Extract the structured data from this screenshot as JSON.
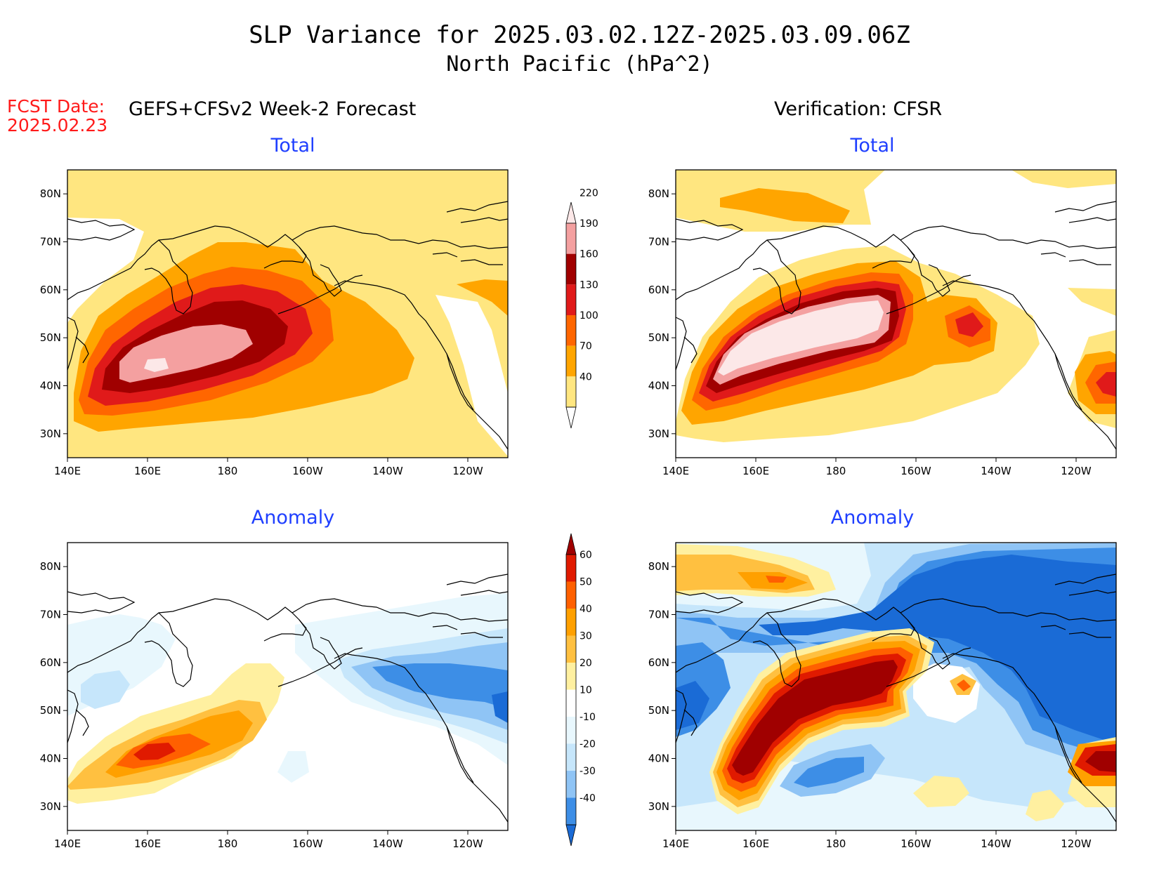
{
  "header": {
    "title_line1": "SLP Variance for 2025.03.02.12Z-2025.03.09.06Z",
    "title_line2": "North Pacific (hPa^2)",
    "fcst_line1": "FCST Date:",
    "fcst_line2": "2025.02.23",
    "forecast_heading": "GEFS+CFSv2 Week-2 Forecast",
    "verification_heading": "Verification: CFSR"
  },
  "panels": {
    "fc_total": {
      "title": "Total"
    },
    "ver_total": {
      "title": "Total"
    },
    "fc_anom": {
      "title": "Anomaly"
    },
    "ver_anom": {
      "title": "Anomaly"
    }
  },
  "axes": {
    "lon_labels": [
      "140E",
      "160E",
      "180",
      "160W",
      "140W",
      "120W"
    ],
    "lat_labels": [
      "80N",
      "70N",
      "60N",
      "50N",
      "40N",
      "30N"
    ],
    "lon_range_deg_east": [
      140,
      250
    ],
    "lat_range_deg_north": [
      25,
      85
    ]
  },
  "colorbars": {
    "total": {
      "levels": [
        "40",
        "70",
        "100",
        "130",
        "160",
        "190",
        "220"
      ],
      "colors": [
        "#ffffff",
        "#ffe680",
        "#ffa500",
        "#ff6600",
        "#e01a1a",
        "#a00000",
        "#f4a0a0",
        "#fce8e8"
      ]
    },
    "anomaly": {
      "levels": [
        "-40",
        "-30",
        "-20",
        "-10",
        "10",
        "20",
        "30",
        "40",
        "50",
        "60"
      ],
      "colors": [
        "#1a6bd6",
        "#3d8ee6",
        "#8fc4f5",
        "#c6e6fb",
        "#e8f7fd",
        "#ffffff",
        "#fff0a0",
        "#ffc040",
        "#ffa000",
        "#ff6000",
        "#e01a00",
        "#a00000"
      ]
    }
  },
  "colors": {
    "title_blue": "#1f3fff",
    "fcst_red": "#ff1a1a"
  }
}
